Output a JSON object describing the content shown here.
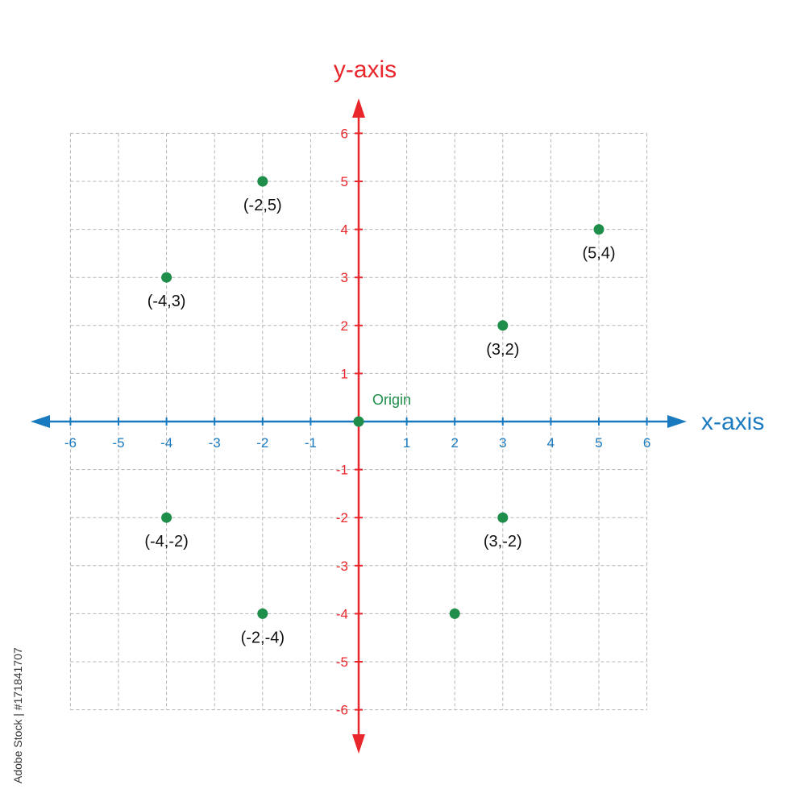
{
  "chart_data": {
    "type": "scatter",
    "title": "",
    "xlabel": "x-axis",
    "ylabel": "y-axis",
    "xlim": [
      -6,
      6
    ],
    "ylim": [
      -6,
      6
    ],
    "x_ticks": [
      -6,
      -5,
      -4,
      -3,
      -2,
      -1,
      1,
      2,
      3,
      4,
      5,
      6
    ],
    "y_ticks": [
      6,
      5,
      4,
      3,
      2,
      1,
      -1,
      -2,
      -3,
      -4,
      -5,
      -6
    ],
    "grid": true,
    "origin_label": "Origin",
    "points": [
      {
        "x": -2,
        "y": 5,
        "label": "(-2,5)"
      },
      {
        "x": 5,
        "y": 4,
        "label": "(5,4)"
      },
      {
        "x": -4,
        "y": 3,
        "label": "(-4,3)"
      },
      {
        "x": 3,
        "y": 2,
        "label": "(3,2)"
      },
      {
        "x": 0,
        "y": 0,
        "label": ""
      },
      {
        "x": -4,
        "y": -2,
        "label": "(-4,-2)"
      },
      {
        "x": 3,
        "y": -2,
        "label": "(3,-2)"
      },
      {
        "x": -2,
        "y": -4,
        "label": "(-2,-4)"
      },
      {
        "x": 2,
        "y": -4,
        "label": ""
      }
    ],
    "colors": {
      "x_axis": "#1a7abf",
      "y_axis": "#e8262b",
      "point": "#1e8e4a",
      "grid": "#b3b3b3",
      "label": "#111111"
    }
  },
  "watermark": "Adobe Stock | #171841707"
}
